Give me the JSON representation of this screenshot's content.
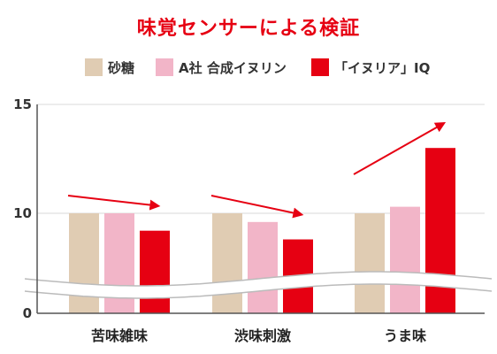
{
  "chart_data": {
    "type": "bar",
    "title": "味覚センサーによる検証",
    "categories": [
      "苦味雑味",
      "渋味刺激",
      "うま味"
    ],
    "series": [
      {
        "name": "砂糖",
        "values": [
          10,
          10,
          10
        ],
        "color": "#e0ccb3"
      },
      {
        "name": "A社 合成イヌリン",
        "values": [
          10,
          9.6,
          10.3
        ],
        "color": "#f2b5c8"
      },
      {
        "name": "「イヌリア」IQ",
        "values": [
          9.2,
          8.8,
          13
        ],
        "color": "#e60012"
      }
    ],
    "yticks": [
      0,
      10,
      15
    ],
    "ylim": [
      0,
      15
    ],
    "axis_break": true,
    "title_color": "#e60012",
    "arrow_color": "#e60012",
    "grid": true,
    "legend_position": "top"
  }
}
